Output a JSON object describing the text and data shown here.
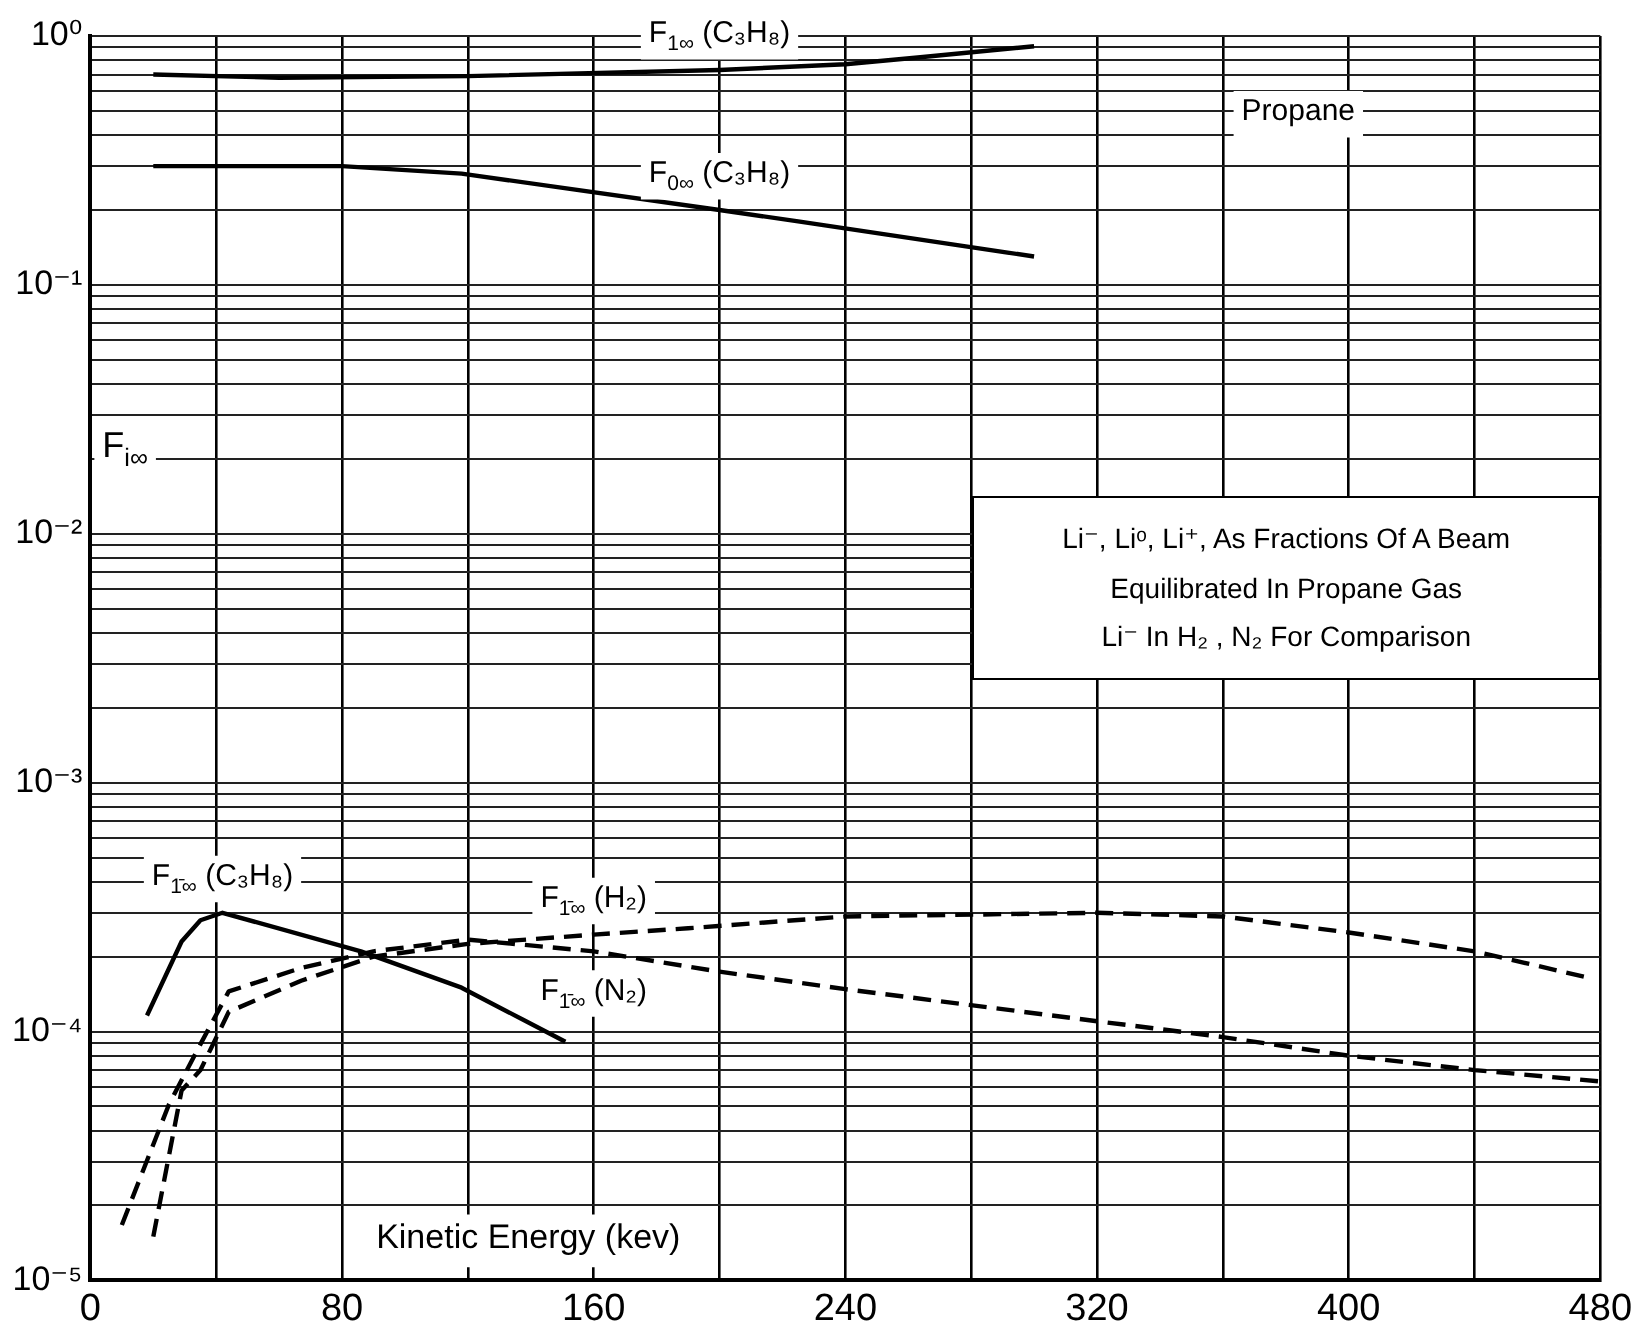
{
  "chart_data": {
    "type": "line",
    "title": "Propane",
    "xlabel": "Kinetic Energy (kev)",
    "ylabel": "F$_{i∞}$",
    "log": "y",
    "grid": true,
    "legend": false,
    "marker": "none",
    "xlim": [
      0,
      480
    ],
    "xticks": [
      0,
      {
        "value": 40,
        "label": null
      },
      80,
      {
        "value": 120,
        "label": null
      },
      160,
      {
        "value": 200,
        "label": null
      },
      240,
      {
        "value": 280,
        "label": null
      },
      320,
      {
        "value": 360,
        "label": null
      },
      400,
      {
        "value": 440,
        "label": null
      },
      480
    ],
    "ylim": [
      1e-05,
      1
    ],
    "yticks": [
      {
        "value": 1e-05,
        "label": "10⁻⁵"
      },
      {
        "value": 2e-05,
        "label": null
      },
      {
        "value": 3e-05,
        "label": null
      },
      {
        "value": 4e-05,
        "label": null
      },
      {
        "value": 5e-05,
        "label": null
      },
      {
        "value": 6e-05,
        "label": null
      },
      {
        "value": 7e-05,
        "label": null
      },
      {
        "value": 8e-05,
        "label": null
      },
      {
        "value": 9e-05,
        "label": null
      },
      {
        "value": 0.0001,
        "label": "10⁻⁴"
      },
      {
        "value": 0.0002,
        "label": null
      },
      {
        "value": 0.0003,
        "label": null
      },
      {
        "value": 0.0004,
        "label": null
      },
      {
        "value": 0.0005,
        "label": null
      },
      {
        "value": 0.0006,
        "label": null
      },
      {
        "value": 0.0007,
        "label": null
      },
      {
        "value": 0.0008,
        "label": null
      },
      {
        "value": 0.0009,
        "label": null
      },
      {
        "value": 0.001,
        "label": "10⁻³"
      },
      {
        "value": 0.002,
        "label": null
      },
      {
        "value": 0.003,
        "label": null
      },
      {
        "value": 0.004,
        "label": null
      },
      {
        "value": 0.005,
        "label": null
      },
      {
        "value": 0.006,
        "label": null
      },
      {
        "value": 0.007,
        "label": null
      },
      {
        "value": 0.008,
        "label": null
      },
      {
        "value": 0.009,
        "label": null
      },
      {
        "value": 0.01,
        "label": "10⁻²"
      },
      {
        "value": 0.02,
        "label": null
      },
      {
        "value": 0.03,
        "label": null
      },
      {
        "value": 0.04,
        "label": null
      },
      {
        "value": 0.05,
        "label": null
      },
      {
        "value": 0.06,
        "label": null
      },
      {
        "value": 0.07,
        "label": null
      },
      {
        "value": 0.08,
        "label": null
      },
      {
        "value": 0.09,
        "label": null
      },
      {
        "value": 0.1,
        "label": "10⁻¹"
      },
      {
        "value": 0.2,
        "label": null
      },
      {
        "value": 0.3,
        "label": null
      },
      {
        "value": 0.4,
        "label": null
      },
      {
        "value": 0.5,
        "label": null
      },
      {
        "value": 0.6,
        "label": null
      },
      {
        "value": 0.7,
        "label": null
      },
      {
        "value": 0.8,
        "label": null
      },
      {
        "value": 0.9,
        "label": null
      },
      {
        "value": 1,
        "label": "10⁰"
      }
    ],
    "series": [
      {
        "name": "F$_{1∞}$ (C₃H₈)",
        "color": "#000000",
        "line_style": "solid",
        "x": [
          20,
          60,
          120,
          200,
          240,
          263,
          300
        ],
        "values": [
          0.7,
          0.68,
          0.69,
          0.73,
          0.77,
          0.82,
          0.91
        ]
      },
      {
        "name": "F$_{0∞}$ (C₃H₈)",
        "color": "#000000",
        "line_style": "solid",
        "x": [
          20,
          80,
          118,
          200,
          225,
          300
        ],
        "values": [
          0.3,
          0.3,
          0.28,
          0.2,
          0.18,
          0.13
        ]
      },
      {
        "name": "F$_{1̄∞}$ (C₃H₈)",
        "color": "#000000",
        "line_style": "solid",
        "x": [
          18,
          29,
          35,
          42,
          86,
          118,
          151
        ],
        "values": [
          0.000116,
          0.00023,
          0.00028,
          0.0003,
          0.00021,
          0.00015,
          9.1e-05
        ]
      },
      {
        "name": "F$_{1̄∞}$ (H₂)",
        "color": "#000000",
        "line_style": "dashed",
        "x": [
          20,
          29,
          35,
          44,
          67,
          90,
          120,
          160,
          190,
          240,
          320,
          360,
          400,
          440,
          475
        ],
        "values": [
          1.5e-05,
          5.8e-05,
          7e-05,
          0.00012,
          0.00016,
          0.0002,
          0.000225,
          0.000245,
          0.00026,
          0.00029,
          0.0003,
          0.00029,
          0.00025,
          0.00021,
          0.000166
        ]
      },
      {
        "name": "F$_{1̄∞}$ (N₂)",
        "color": "#000000",
        "line_style": "dashed",
        "x": [
          10,
          25,
          35,
          44,
          67,
          90,
          120,
          160,
          200,
          240,
          320,
          360,
          400,
          440,
          480
        ],
        "values": [
          1.67e-05,
          5.1e-05,
          8.9e-05,
          0.000145,
          0.00018,
          0.00021,
          0.000234,
          0.00021,
          0.000174,
          0.000148,
          0.00011,
          9.5e-05,
          8e-05,
          7e-05,
          6.3e-05
        ]
      }
    ],
    "annotations": [
      "Li⁻, Liᵒ, Li⁺, As Fractions Of A Beam",
      "Equilibrated In Propane Gas",
      "Li⁻ In H₂ , N₂ For Comparison"
    ]
  }
}
